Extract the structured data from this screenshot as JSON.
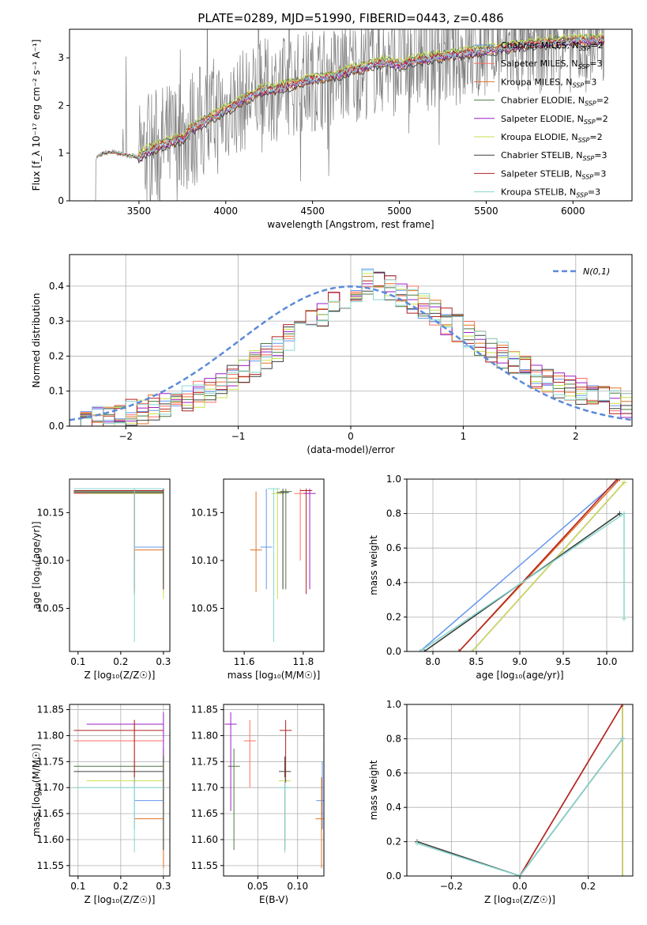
{
  "colors": {
    "Chabrier MILES": "#6495ED",
    "Salpeter MILES": "#FF6F61",
    "Kroupa MILES": "#E37222",
    "Chabrier ELODIE": "#4F7942",
    "Salpeter ELODIE": "#9B1FC4",
    "Kroupa ELODIE": "#C9E04F",
    "Chabrier STELIB": "#404040",
    "Salpeter STELIB": "#B22222",
    "Kroupa STELIB": "#88D8D0",
    "spectrum": "#808080",
    "normal": "#5B8BD9"
  },
  "chart_data": [
    {
      "id": "spectrum",
      "type": "line",
      "title": "PLATE=0289, MJD=51990, FIBERID=0443, z=0.486",
      "xlabel": "wavelength [Angstrom, rest frame]",
      "ylabel": "Flux [f_λ 10⁻¹⁷ erg cm⁻² s⁻¹ A⁻¹]",
      "xlim": [
        3100,
        6340
      ],
      "ylim": [
        0,
        3.6
      ],
      "xticks": [
        "3500",
        "4000",
        "4500",
        "5000",
        "5500",
        "6000"
      ],
      "yticks": [
        "0",
        "1",
        "2",
        "3"
      ],
      "legend_position": "top-right",
      "legend": [
        {
          "label": "Chabrier MILES, N",
          "sub": "SSP",
          "suffix": "=2",
          "model": "Chabrier MILES"
        },
        {
          "label": "Salpeter MILES, N",
          "sub": "SSP",
          "suffix": "=3",
          "model": "Salpeter MILES"
        },
        {
          "label": "Kroupa MILES, N",
          "sub": "SSP",
          "suffix": "=3",
          "model": "Kroupa MILES"
        },
        {
          "label": "Chabrier ELODIE, N",
          "sub": "SSP",
          "suffix": "=2",
          "model": "Chabrier ELODIE"
        },
        {
          "label": "Salpeter ELODIE, N",
          "sub": "SSP",
          "suffix": "=2",
          "model": "Salpeter ELODIE"
        },
        {
          "label": "Kroupa ELODIE, N",
          "sub": "SSP",
          "suffix": "=2",
          "model": "Kroupa ELODIE"
        },
        {
          "label": "Chabrier STELIB, N",
          "sub": "SSP",
          "suffix": "=3",
          "model": "Chabrier STELIB"
        },
        {
          "label": "Salpeter STELIB, N",
          "sub": "SSP",
          "suffix": "=3",
          "model": "Salpeter STELIB"
        },
        {
          "label": "Kroupa STELIB, N",
          "sub": "SSP",
          "suffix": "=3",
          "model": "Kroupa STELIB"
        }
      ],
      "continuum": [
        [
          3250,
          0.9
        ],
        [
          3300,
          1.0
        ],
        [
          3350,
          1.02
        ],
        [
          3400,
          0.98
        ],
        [
          3450,
          0.95
        ],
        [
          3500,
          0.9
        ],
        [
          3550,
          1.05
        ],
        [
          3600,
          1.1
        ],
        [
          3650,
          1.2
        ],
        [
          3700,
          1.25
        ],
        [
          3750,
          1.3
        ],
        [
          3800,
          1.5
        ],
        [
          3850,
          1.6
        ],
        [
          3900,
          1.7
        ],
        [
          3950,
          1.8
        ],
        [
          4000,
          1.9
        ],
        [
          4100,
          2.1
        ],
        [
          4200,
          2.3
        ],
        [
          4300,
          2.35
        ],
        [
          4400,
          2.45
        ],
        [
          4500,
          2.55
        ],
        [
          4600,
          2.6
        ],
        [
          4700,
          2.7
        ],
        [
          4800,
          2.8
        ],
        [
          4900,
          2.9
        ],
        [
          5000,
          2.85
        ],
        [
          5100,
          2.95
        ],
        [
          5200,
          3.0
        ],
        [
          5300,
          3.05
        ],
        [
          5400,
          3.1
        ],
        [
          5500,
          3.15
        ],
        [
          5600,
          3.2
        ],
        [
          5700,
          3.25
        ],
        [
          5800,
          3.3
        ],
        [
          5900,
          3.32
        ],
        [
          6000,
          3.35
        ],
        [
          6100,
          3.36
        ],
        [
          6180,
          3.38
        ]
      ],
      "model_offsets": [
        0.0,
        0.05,
        -0.05,
        0.08,
        -0.03,
        0.1,
        -0.08,
        0.02,
        0.0
      ]
    },
    {
      "id": "residuals",
      "type": "step",
      "xlabel": "(data-model)/error",
      "ylabel": "Normed distribution",
      "xlim": [
        -2.5,
        2.5
      ],
      "ylim": [
        0,
        0.49
      ],
      "xticks": [
        "−2",
        "−1",
        "0",
        "1",
        "2"
      ],
      "yticks": [
        "0.0",
        "0.1",
        "0.2",
        "0.3",
        "0.4"
      ],
      "legend_position": "top-right",
      "legend_label": "N(0,1)",
      "base_hist": [
        0.02,
        0.02,
        0.025,
        0.03,
        0.03,
        0.04,
        0.04,
        0.05,
        0.06,
        0.07,
        0.08,
        0.09,
        0.1,
        0.12,
        0.14,
        0.16,
        0.18,
        0.2,
        0.22,
        0.25,
        0.28,
        0.3,
        0.32,
        0.35,
        0.37,
        0.39,
        0.41,
        0.4,
        0.39,
        0.38,
        0.36,
        0.34,
        0.32,
        0.3,
        0.28,
        0.26,
        0.24,
        0.22,
        0.2,
        0.18,
        0.16,
        0.14,
        0.13,
        0.12,
        0.11,
        0.1,
        0.09,
        0.08,
        0.07,
        0.06
      ]
    },
    {
      "id": "age-vs-Z",
      "type": "errorbar",
      "xlabel": "Z [log₁₀(Z/Z☉)]",
      "ylabel": "age  [log₁₀(age/yr)]",
      "xlim": [
        0.08,
        0.315
      ],
      "ylim": [
        10.005,
        10.185
      ],
      "xticks": [
        "0.1",
        "0.2",
        "0.3"
      ],
      "yticks": [
        "10.05",
        "10.10",
        "10.15"
      ]
    },
    {
      "id": "age-vs-mass",
      "type": "errorbar",
      "xlabel": "mass [log₁₀(M/M☉)]",
      "xlim": [
        11.53,
        11.87
      ],
      "ylim": [
        10.005,
        10.185
      ],
      "xticks": [
        "11.6",
        "11.8"
      ],
      "yticks": [
        "10.05",
        "10.10",
        "10.15"
      ]
    },
    {
      "id": "weight-vs-age",
      "type": "line",
      "xlabel": "age  [log₁₀(age/yr)]",
      "ylabel": "mass weight",
      "xlim": [
        7.7,
        10.3
      ],
      "ylim": [
        0.0,
        1.0
      ],
      "xticks": [
        "8.0",
        "8.5",
        "9.0",
        "9.5",
        "10.0"
      ],
      "yticks": [
        "0.0",
        "0.2",
        "0.4",
        "0.6",
        "0.8",
        "1.0"
      ]
    },
    {
      "id": "mass-vs-Z",
      "type": "errorbar",
      "xlabel": "Z [log₁₀(Z/Z☉)]",
      "ylabel": "mass [log₁₀(M/M☉)]",
      "xlim": [
        0.08,
        0.315
      ],
      "ylim": [
        11.53,
        11.86
      ],
      "xticks": [
        "0.1",
        "0.2",
        "0.3"
      ],
      "yticks": [
        "11.55",
        "11.60",
        "11.65",
        "11.70",
        "11.75",
        "11.80",
        "11.85"
      ]
    },
    {
      "id": "mass-vs-ebv",
      "type": "errorbar",
      "xlabel": "E(B-V)",
      "xlim": [
        0.007,
        0.133
      ],
      "ylim": [
        11.53,
        11.86
      ],
      "xticks": [
        "0.05",
        "0.10"
      ],
      "yticks": [
        "11.55",
        "11.60",
        "11.65",
        "11.70",
        "11.75",
        "11.80",
        "11.85"
      ]
    },
    {
      "id": "weight-vs-Z",
      "type": "line",
      "xlabel": "Z [log₁₀(Z/Z☉)]",
      "ylabel": "mass weight",
      "xlim": [
        -0.33,
        0.33
      ],
      "ylim": [
        0.0,
        1.0
      ],
      "xticks": [
        "−0.2",
        "0.0",
        "0.2"
      ],
      "yticks": [
        "0.0",
        "0.2",
        "0.4",
        "0.6",
        "0.8",
        "1.0"
      ]
    }
  ],
  "models": [
    {
      "name": "Chabrier MILES",
      "Z": 0.232,
      "age": 10.114,
      "mass": 11.675,
      "ebv": 0.131,
      "age_err": [
        10.07,
        10.175
      ],
      "mass_err": [
        11.62,
        11.75
      ],
      "xerr": [
        0.232,
        0.3
      ],
      "wa": [
        [
          7.85,
          0.0
        ],
        [
          10.15,
          1.0
        ]
      ],
      "wz": [
        [
          0.0,
          0.0
        ],
        [
          0.3,
          1.0
        ]
      ]
    },
    {
      "name": "Salpeter MILES",
      "Z": 0.232,
      "age": 10.17,
      "mass": 11.79,
      "ebv": 0.04,
      "age_err": [
        10.1,
        10.175
      ],
      "mass_err": [
        11.7,
        11.83
      ],
      "xerr": [
        0.09,
        0.3
      ],
      "wa": [
        [
          8.3,
          0.0
        ],
        [
          10.12,
          1.0
        ]
      ],
      "wz": [
        [
          0.0,
          0.0
        ],
        [
          0.3,
          1.0
        ]
      ]
    },
    {
      "name": "Kroupa MILES",
      "Z": 0.3,
      "age": 10.111,
      "mass": 11.64,
      "ebv": 0.13,
      "age_err": [
        10.067,
        10.172
      ],
      "mass_err": [
        11.545,
        11.72
      ],
      "xerr": [
        0.232,
        0.3
      ],
      "wa": [
        [
          8.3,
          0.0
        ],
        [
          10.15,
          1.0
        ]
      ],
      "wz": [
        [
          0.0,
          0.0
        ],
        [
          0.3,
          1.0
        ]
      ]
    },
    {
      "name": "Chabrier ELODIE",
      "Z": 0.3,
      "age": 10.172,
      "mass": 11.741,
      "ebv": 0.02,
      "age_err": [
        10.07,
        10.175
      ],
      "mass_err": [
        11.58,
        11.775
      ],
      "xerr": [
        0.09,
        0.3
      ],
      "wa": [
        [
          7.9,
          0.0
        ],
        [
          10.15,
          0.8
        ]
      ],
      "wz": [
        [
          -0.3,
          0.2
        ],
        [
          0.0,
          0.0
        ],
        [
          0.3,
          0.8
        ]
      ]
    },
    {
      "name": "Salpeter ELODIE",
      "Z": 0.3,
      "age": 10.17,
      "mass": 11.822,
      "ebv": 0.016,
      "age_err": [
        10.07,
        10.175
      ],
      "mass_err": [
        11.655,
        11.845
      ],
      "xerr": [
        0.12,
        0.3
      ],
      "wa": [
        [
          8.45,
          0.0
        ],
        [
          10.2,
          0.98
        ]
      ],
      "wz": [
        [
          0.3,
          0.0
        ],
        [
          0.3,
          1.0
        ]
      ]
    },
    {
      "name": "Kroupa ELODIE",
      "Z": 0.3,
      "age": 10.17,
      "mass": 11.713,
      "ebv": 0.084,
      "age_err": [
        10.06,
        10.175
      ],
      "mass_err": [
        11.58,
        11.75
      ],
      "xerr": [
        0.12,
        0.3
      ],
      "wa": [
        [
          8.45,
          0.0
        ],
        [
          10.2,
          0.98
        ]
      ],
      "wz": [
        [
          0.3,
          0.0
        ],
        [
          0.3,
          1.0
        ]
      ]
    },
    {
      "name": "Chabrier STELIB",
      "Z": 0.3,
      "age": 10.171,
      "mass": 11.731,
      "ebv": 0.084,
      "age_err": [
        10.07,
        10.175
      ],
      "mass_err": [
        11.58,
        11.76
      ],
      "xerr": [
        0.09,
        0.3
      ],
      "wa": [
        [
          7.9,
          0.0
        ],
        [
          10.15,
          0.8
        ]
      ],
      "wz": [
        [
          -0.3,
          0.2
        ],
        [
          0.0,
          0.0
        ],
        [
          0.3,
          0.8
        ]
      ]
    },
    {
      "name": "Salpeter STELIB",
      "Z": 0.232,
      "age": 10.173,
      "mass": 11.81,
      "ebv": 0.085,
      "age_err": [
        10.065,
        10.175
      ],
      "mass_err": [
        11.71,
        11.83
      ],
      "xerr": [
        0.09,
        0.3
      ],
      "wa": [
        [
          8.3,
          0.0
        ],
        [
          10.12,
          1.0
        ]
      ],
      "wz": [
        [
          0.0,
          0.0
        ],
        [
          0.3,
          1.0
        ]
      ]
    },
    {
      "name": "Kroupa STELIB",
      "Z": 0.232,
      "age": 10.175,
      "mass": 11.7,
      "ebv": 0.084,
      "age_err": [
        10.015,
        10.175
      ],
      "mass_err": [
        11.575,
        11.72
      ],
      "xerr": [
        0.09,
        0.3
      ],
      "wa": [
        [
          7.85,
          0.0
        ],
        [
          10.2,
          0.8
        ],
        [
          10.2,
          0.19
        ]
      ],
      "wz": [
        [
          -0.3,
          0.19
        ],
        [
          0.0,
          0.0
        ],
        [
          0.3,
          0.8
        ]
      ]
    }
  ]
}
